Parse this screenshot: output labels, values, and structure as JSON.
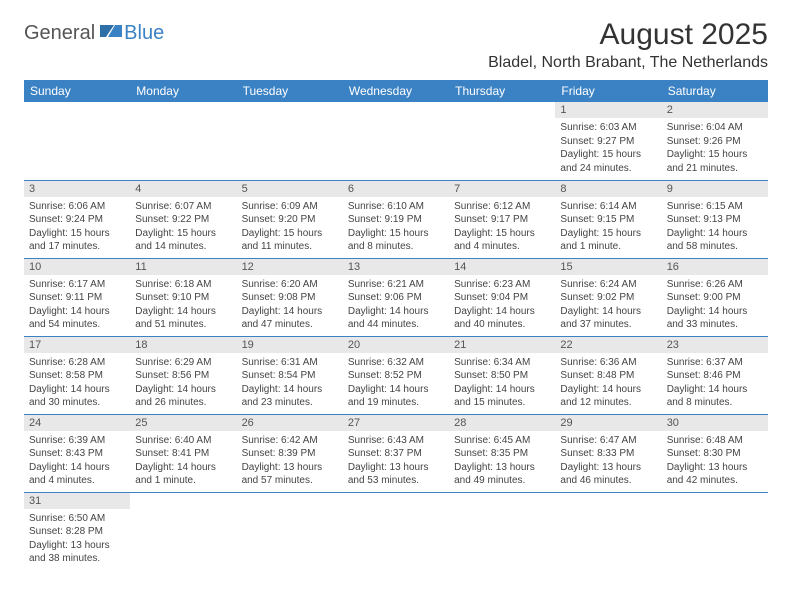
{
  "logo": {
    "general": "General",
    "blue": "Blue"
  },
  "title": "August 2025",
  "location": "Bladel, North Brabant, The Netherlands",
  "colors": {
    "header_bg": "#3b82c4",
    "header_fg": "#ffffff",
    "daynum_bg": "#e8e8e8",
    "cell_border": "#3b82c4",
    "text": "#333333"
  },
  "day_headers": [
    "Sunday",
    "Monday",
    "Tuesday",
    "Wednesday",
    "Thursday",
    "Friday",
    "Saturday"
  ],
  "weeks": [
    [
      null,
      null,
      null,
      null,
      null,
      {
        "n": "1",
        "sr": "Sunrise: 6:03 AM",
        "ss": "Sunset: 9:27 PM",
        "d1": "Daylight: 15 hours",
        "d2": "and 24 minutes."
      },
      {
        "n": "2",
        "sr": "Sunrise: 6:04 AM",
        "ss": "Sunset: 9:26 PM",
        "d1": "Daylight: 15 hours",
        "d2": "and 21 minutes."
      }
    ],
    [
      {
        "n": "3",
        "sr": "Sunrise: 6:06 AM",
        "ss": "Sunset: 9:24 PM",
        "d1": "Daylight: 15 hours",
        "d2": "and 17 minutes."
      },
      {
        "n": "4",
        "sr": "Sunrise: 6:07 AM",
        "ss": "Sunset: 9:22 PM",
        "d1": "Daylight: 15 hours",
        "d2": "and 14 minutes."
      },
      {
        "n": "5",
        "sr": "Sunrise: 6:09 AM",
        "ss": "Sunset: 9:20 PM",
        "d1": "Daylight: 15 hours",
        "d2": "and 11 minutes."
      },
      {
        "n": "6",
        "sr": "Sunrise: 6:10 AM",
        "ss": "Sunset: 9:19 PM",
        "d1": "Daylight: 15 hours",
        "d2": "and 8 minutes."
      },
      {
        "n": "7",
        "sr": "Sunrise: 6:12 AM",
        "ss": "Sunset: 9:17 PM",
        "d1": "Daylight: 15 hours",
        "d2": "and 4 minutes."
      },
      {
        "n": "8",
        "sr": "Sunrise: 6:14 AM",
        "ss": "Sunset: 9:15 PM",
        "d1": "Daylight: 15 hours",
        "d2": "and 1 minute."
      },
      {
        "n": "9",
        "sr": "Sunrise: 6:15 AM",
        "ss": "Sunset: 9:13 PM",
        "d1": "Daylight: 14 hours",
        "d2": "and 58 minutes."
      }
    ],
    [
      {
        "n": "10",
        "sr": "Sunrise: 6:17 AM",
        "ss": "Sunset: 9:11 PM",
        "d1": "Daylight: 14 hours",
        "d2": "and 54 minutes."
      },
      {
        "n": "11",
        "sr": "Sunrise: 6:18 AM",
        "ss": "Sunset: 9:10 PM",
        "d1": "Daylight: 14 hours",
        "d2": "and 51 minutes."
      },
      {
        "n": "12",
        "sr": "Sunrise: 6:20 AM",
        "ss": "Sunset: 9:08 PM",
        "d1": "Daylight: 14 hours",
        "d2": "and 47 minutes."
      },
      {
        "n": "13",
        "sr": "Sunrise: 6:21 AM",
        "ss": "Sunset: 9:06 PM",
        "d1": "Daylight: 14 hours",
        "d2": "and 44 minutes."
      },
      {
        "n": "14",
        "sr": "Sunrise: 6:23 AM",
        "ss": "Sunset: 9:04 PM",
        "d1": "Daylight: 14 hours",
        "d2": "and 40 minutes."
      },
      {
        "n": "15",
        "sr": "Sunrise: 6:24 AM",
        "ss": "Sunset: 9:02 PM",
        "d1": "Daylight: 14 hours",
        "d2": "and 37 minutes."
      },
      {
        "n": "16",
        "sr": "Sunrise: 6:26 AM",
        "ss": "Sunset: 9:00 PM",
        "d1": "Daylight: 14 hours",
        "d2": "and 33 minutes."
      }
    ],
    [
      {
        "n": "17",
        "sr": "Sunrise: 6:28 AM",
        "ss": "Sunset: 8:58 PM",
        "d1": "Daylight: 14 hours",
        "d2": "and 30 minutes."
      },
      {
        "n": "18",
        "sr": "Sunrise: 6:29 AM",
        "ss": "Sunset: 8:56 PM",
        "d1": "Daylight: 14 hours",
        "d2": "and 26 minutes."
      },
      {
        "n": "19",
        "sr": "Sunrise: 6:31 AM",
        "ss": "Sunset: 8:54 PM",
        "d1": "Daylight: 14 hours",
        "d2": "and 23 minutes."
      },
      {
        "n": "20",
        "sr": "Sunrise: 6:32 AM",
        "ss": "Sunset: 8:52 PM",
        "d1": "Daylight: 14 hours",
        "d2": "and 19 minutes."
      },
      {
        "n": "21",
        "sr": "Sunrise: 6:34 AM",
        "ss": "Sunset: 8:50 PM",
        "d1": "Daylight: 14 hours",
        "d2": "and 15 minutes."
      },
      {
        "n": "22",
        "sr": "Sunrise: 6:36 AM",
        "ss": "Sunset: 8:48 PM",
        "d1": "Daylight: 14 hours",
        "d2": "and 12 minutes."
      },
      {
        "n": "23",
        "sr": "Sunrise: 6:37 AM",
        "ss": "Sunset: 8:46 PM",
        "d1": "Daylight: 14 hours",
        "d2": "and 8 minutes."
      }
    ],
    [
      {
        "n": "24",
        "sr": "Sunrise: 6:39 AM",
        "ss": "Sunset: 8:43 PM",
        "d1": "Daylight: 14 hours",
        "d2": "and 4 minutes."
      },
      {
        "n": "25",
        "sr": "Sunrise: 6:40 AM",
        "ss": "Sunset: 8:41 PM",
        "d1": "Daylight: 14 hours",
        "d2": "and 1 minute."
      },
      {
        "n": "26",
        "sr": "Sunrise: 6:42 AM",
        "ss": "Sunset: 8:39 PM",
        "d1": "Daylight: 13 hours",
        "d2": "and 57 minutes."
      },
      {
        "n": "27",
        "sr": "Sunrise: 6:43 AM",
        "ss": "Sunset: 8:37 PM",
        "d1": "Daylight: 13 hours",
        "d2": "and 53 minutes."
      },
      {
        "n": "28",
        "sr": "Sunrise: 6:45 AM",
        "ss": "Sunset: 8:35 PM",
        "d1": "Daylight: 13 hours",
        "d2": "and 49 minutes."
      },
      {
        "n": "29",
        "sr": "Sunrise: 6:47 AM",
        "ss": "Sunset: 8:33 PM",
        "d1": "Daylight: 13 hours",
        "d2": "and 46 minutes."
      },
      {
        "n": "30",
        "sr": "Sunrise: 6:48 AM",
        "ss": "Sunset: 8:30 PM",
        "d1": "Daylight: 13 hours",
        "d2": "and 42 minutes."
      }
    ],
    [
      {
        "n": "31",
        "sr": "Sunrise: 6:50 AM",
        "ss": "Sunset: 8:28 PM",
        "d1": "Daylight: 13 hours",
        "d2": "and 38 minutes."
      },
      null,
      null,
      null,
      null,
      null,
      null
    ]
  ]
}
